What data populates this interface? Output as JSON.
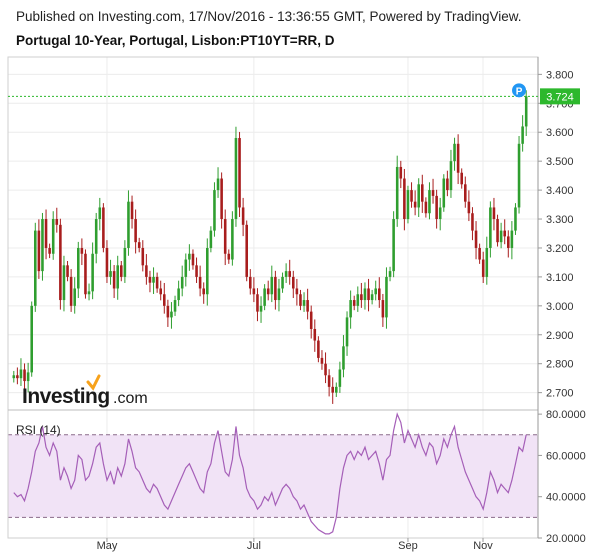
{
  "header": {
    "published": "Published on Investing.com, 17/Nov/2016 - 13:36:55 GMT, Powered by TradingView.",
    "instrument": "Portugal 10-Year, Portugal, Lisbon:PT10YT=RR, D"
  },
  "logo": {
    "brand": "Investing",
    "suffix": ".com"
  },
  "chart_data": [
    {
      "type": "candlestick",
      "title": "",
      "price_axis": {
        "ylim": [
          2.64,
          3.86
        ],
        "ticks": [
          "3.800",
          "3.700",
          "3.600",
          "3.500",
          "3.400",
          "3.300",
          "3.200",
          "3.100",
          "3.000",
          "2.900",
          "2.800",
          "2.700"
        ]
      },
      "last_price": {
        "label": "3.724",
        "value": 3.724,
        "color": "#2db82d"
      },
      "marker": {
        "label": "P",
        "color": "#2196f3"
      },
      "x_labels": [
        "May",
        "Jul",
        "Sep",
        "Nov"
      ],
      "up_color": "#2f9e2f",
      "down_color": "#a81d1d",
      "closes": [
        2.76,
        2.75,
        2.78,
        2.74,
        2.77,
        3.0,
        3.26,
        3.12,
        3.3,
        3.2,
        3.18,
        3.3,
        3.28,
        3.02,
        3.14,
        3.1,
        3.0,
        3.06,
        3.2,
        3.18,
        3.04,
        3.05,
        3.18,
        3.3,
        3.34,
        3.2,
        3.1,
        3.12,
        3.06,
        3.14,
        3.1,
        3.2,
        3.36,
        3.3,
        3.22,
        3.2,
        3.14,
        3.1,
        3.08,
        3.1,
        3.06,
        3.04,
        3.0,
        2.96,
        2.98,
        3.02,
        3.06,
        3.1,
        3.16,
        3.18,
        3.14,
        3.1,
        3.06,
        3.04,
        3.2,
        3.26,
        3.4,
        3.44,
        3.3,
        3.18,
        3.16,
        3.3,
        3.58,
        3.34,
        3.28,
        3.1,
        3.06,
        3.04,
        2.98,
        3.0,
        3.06,
        3.04,
        3.1,
        3.02,
        3.06,
        3.1,
        3.12,
        3.1,
        3.06,
        3.04,
        3.0,
        3.02,
        2.98,
        2.92,
        2.88,
        2.82,
        2.8,
        2.76,
        2.72,
        2.7,
        2.72,
        2.78,
        2.86,
        2.96,
        3.02,
        3.0,
        3.04,
        3.02,
        3.06,
        3.02,
        3.04,
        3.06,
        3.02,
        2.96,
        3.1,
        3.12,
        3.3,
        3.48,
        3.44,
        3.3,
        3.4,
        3.36,
        3.34,
        3.42,
        3.36,
        3.32,
        3.4,
        3.38,
        3.3,
        3.34,
        3.44,
        3.4,
        3.5,
        3.56,
        3.46,
        3.42,
        3.36,
        3.32,
        3.26,
        3.2,
        3.16,
        3.1,
        3.2,
        3.34,
        3.3,
        3.22,
        3.26,
        3.24,
        3.2,
        3.26,
        3.34,
        3.56,
        3.62,
        3.724
      ]
    },
    {
      "type": "line",
      "title": "RSI (14)",
      "ylim": [
        20,
        82
      ],
      "ticks": [
        "80.0000",
        "60.0000",
        "40.0000",
        "20.0000"
      ],
      "bands": [
        70,
        30
      ],
      "line_color": "#a55fb8",
      "band_fill": "#f1e3f6",
      "values": [
        42,
        40,
        41,
        38,
        44,
        52,
        62,
        66,
        74,
        64,
        60,
        66,
        62,
        48,
        54,
        50,
        44,
        48,
        60,
        58,
        48,
        50,
        56,
        64,
        66,
        56,
        48,
        52,
        46,
        54,
        50,
        56,
        68,
        62,
        54,
        52,
        48,
        44,
        42,
        46,
        44,
        40,
        36,
        34,
        38,
        42,
        46,
        50,
        54,
        56,
        52,
        48,
        44,
        42,
        52,
        56,
        66,
        72,
        62,
        52,
        50,
        58,
        74,
        60,
        54,
        44,
        40,
        38,
        34,
        36,
        40,
        38,
        42,
        36,
        40,
        44,
        46,
        44,
        40,
        38,
        34,
        36,
        32,
        28,
        26,
        24,
        23,
        22,
        22,
        23,
        30,
        44,
        54,
        60,
        62,
        58,
        62,
        60,
        64,
        58,
        60,
        62,
        56,
        48,
        58,
        60,
        72,
        80,
        76,
        66,
        72,
        68,
        64,
        70,
        64,
        60,
        66,
        64,
        56,
        60,
        68,
        64,
        70,
        74,
        64,
        58,
        52,
        48,
        44,
        40,
        38,
        34,
        42,
        52,
        48,
        42,
        46,
        44,
        42,
        48,
        56,
        64,
        62,
        70
      ]
    }
  ]
}
